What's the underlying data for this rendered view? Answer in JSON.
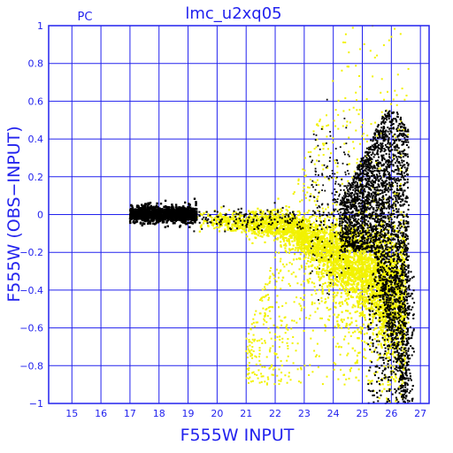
{
  "chart_data": {
    "type": "scatter",
    "title": "lmc_u2xq05",
    "subtitle": "PC",
    "xlabel": "F555W INPUT",
    "ylabel": "F555W (OBS−INPUT)",
    "xlim": [
      14.2,
      27.3
    ],
    "ylim": [
      -1,
      1
    ],
    "x_ticks": [
      15,
      16,
      17,
      18,
      19,
      20,
      21,
      22,
      23,
      24,
      25,
      26,
      27
    ],
    "y_ticks": [
      -1,
      -0.8,
      -0.6,
      -0.4,
      -0.2,
      0,
      0.2,
      0.4,
      0.6,
      0.8,
      1
    ],
    "y_tick_labels": [
      "−1",
      "−0.8",
      "−0.6",
      "−0.4",
      "−0.2",
      "0",
      "0.2",
      "0.4",
      "0.6",
      "0.8",
      "1"
    ],
    "grid": true,
    "colors": {
      "axes": "#2222ee",
      "yellow_points": "#f2f200",
      "black_points": "#000000"
    },
    "series": [
      {
        "color": "yellow",
        "description_points": [
          {
            "x": 19.0,
            "y": -0.02
          },
          {
            "x": 20.0,
            "y": -0.03
          },
          {
            "x": 21.0,
            "y": -0.05
          },
          {
            "x": 22.0,
            "y": -0.07
          },
          {
            "x": 23.0,
            "y": -0.1
          },
          {
            "x": 24.0,
            "y": -0.15
          },
          {
            "x": 25.0,
            "y": -0.3
          },
          {
            "x": 26.0,
            "y": -0.5
          }
        ]
      },
      {
        "color": "black",
        "description_points": [
          {
            "x": 17.0,
            "y": 0.0
          },
          {
            "x": 18.0,
            "y": 0.0
          },
          {
            "x": 19.0,
            "y": -0.01
          },
          {
            "x": 24.5,
            "y": 0.1
          },
          {
            "x": 25.5,
            "y": 0.2
          },
          {
            "x": 26.0,
            "y": 0.0
          },
          {
            "x": 26.3,
            "y": -0.5
          },
          {
            "x": 26.5,
            "y": -0.9
          }
        ]
      }
    ]
  }
}
